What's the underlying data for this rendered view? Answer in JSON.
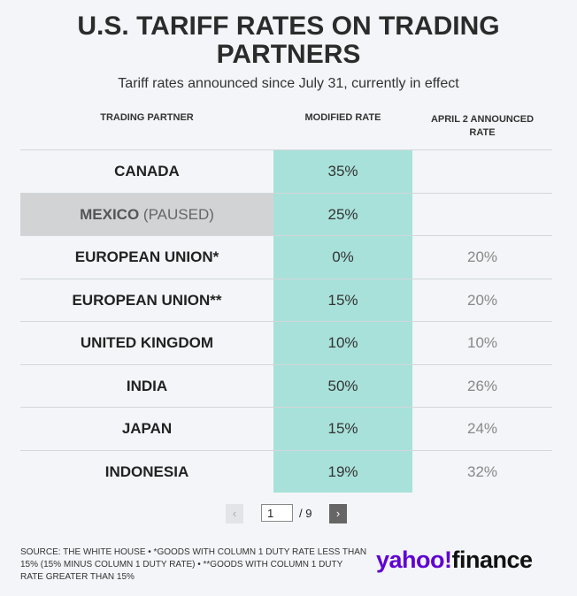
{
  "header": {
    "title": "U.S. TARIFF RATES ON TRADING PARTNERS",
    "subtitle": "Tariff rates announced since July 31, currently in effect"
  },
  "table": {
    "columns": [
      "TRADING PARTNER",
      "MODIFIED RATE",
      "APRIL 2 ANNOUNCED RATE"
    ],
    "rows": [
      {
        "partner": "CANADA",
        "modified_rate": "35%"
      },
      {
        "partner": "MEXICO",
        "note": "(PAUSED)",
        "modified_rate": "25%"
      },
      {
        "partner": "EUROPEAN UNION*",
        "modified_rate": "0%",
        "announced_rate": "20%"
      },
      {
        "partner": "EUROPEAN UNION**",
        "modified_rate": "15%",
        "announced_rate": "20%"
      },
      {
        "partner": "UNITED KINGDOM",
        "modified_rate": "10%",
        "announced_rate": "10%"
      },
      {
        "partner": "INDIA",
        "modified_rate": "50%",
        "announced_rate": "26%"
      },
      {
        "partner": "JAPAN",
        "modified_rate": "15%",
        "announced_rate": "24%"
      },
      {
        "partner": "INDONESIA",
        "modified_rate": "19%",
        "announced_rate": "32%"
      }
    ]
  },
  "pagination": {
    "current": "1",
    "total": "/ 9"
  },
  "footer": {
    "source": "SOURCE: THE WHITE HOUSE • *GOODS WITH COLUMN 1 DUTY RATE LESS THAN 15% (15% MINUS COLUMN 1 DUTY RATE) • **GOODS WITH COLUMN 1 DUTY RATE GREATER THAN 15%",
    "logo": {
      "brand": "yahoo!",
      "section": "finance"
    }
  }
}
